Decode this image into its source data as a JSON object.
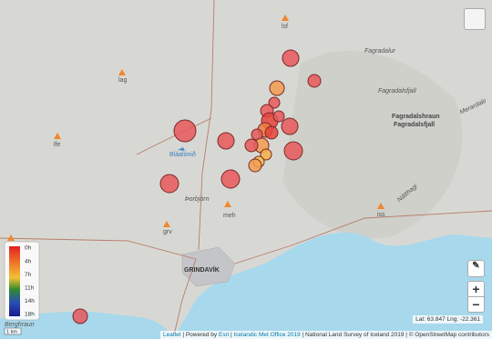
{
  "map": {
    "places": {
      "lsf": "lsf",
      "lag": "lag",
      "lfe": "lfe",
      "blue_lagoon": "Bláalónið",
      "thorbjorn": "Þorbjörn",
      "meh": "meh",
      "grv": "grv",
      "town": "GRINDAVÍK",
      "fagradalur": "Fagradalur",
      "fagradalsfjall_w": "Fagradalsfjall",
      "fagradalshraun": "Fagradalshraun",
      "fagradalsfjall": "Fagradalsfjall",
      "merardalir": "Merardalir",
      "natthagi": "Nátthagi",
      "iss": "iss",
      "berghraun": "Berghraun"
    },
    "legend": {
      "labels": [
        "0h",
        "4h",
        "7h",
        "11h",
        "14h",
        "18h"
      ]
    },
    "scale": "1 km",
    "zoom": {
      "in": "+",
      "out": "−"
    },
    "coordinates": "Lat: 63.847 Lng: -22.361",
    "attribution": {
      "leaflet": "Leaflet",
      "rest": " | Powered by ",
      "esri": "Esri",
      "sep": " | ",
      "imo": "Icelandic Met Office 2019",
      "tail": " | National Land Survey of Iceland 2019 | © OpenStreetMap contributors"
    }
  }
}
